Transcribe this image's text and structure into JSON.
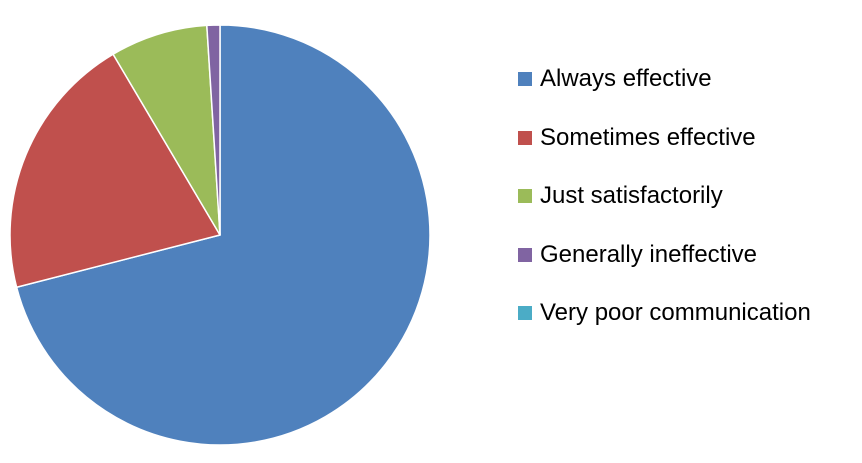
{
  "chart_data": {
    "type": "pie",
    "categories": [
      "Always effective",
      "Sometimes effective",
      "Just satisfactorily",
      "Generally ineffective",
      "Very poor communication"
    ],
    "values": [
      71.0,
      20.5,
      7.5,
      1.0,
      0.0
    ],
    "colors": [
      "#4F81BD",
      "#C0504D",
      "#9BBB59",
      "#8064A2",
      "#4BACC6"
    ],
    "legend_position": "right",
    "title": ""
  }
}
